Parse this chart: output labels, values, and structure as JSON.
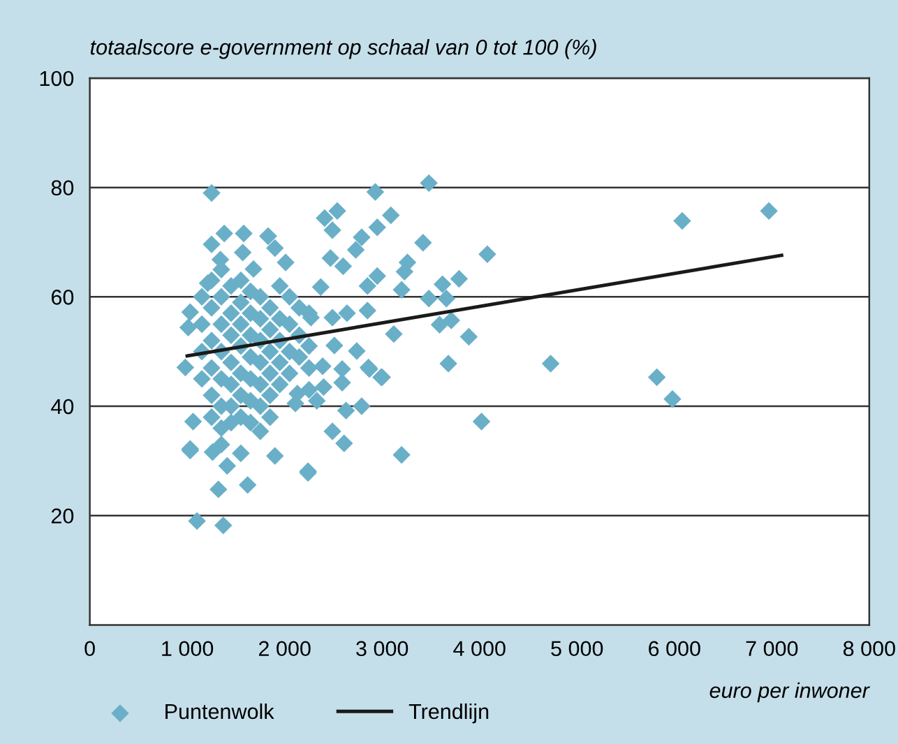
{
  "chart_data": {
    "type": "scatter",
    "ylabel": "totaalscore e-government op schaal van 0 tot 100 (%)",
    "xlabel": "euro per inwoner",
    "xlim": [
      0,
      8000
    ],
    "ylim": [
      0,
      100
    ],
    "xticks": [
      {
        "value": 0,
        "label": "0"
      },
      {
        "value": 1000,
        "label": "1 000"
      },
      {
        "value": 2000,
        "label": "2 000"
      },
      {
        "value": 3000,
        "label": "3 000"
      },
      {
        "value": 4000,
        "label": "4 000"
      },
      {
        "value": 5000,
        "label": "5 000"
      },
      {
        "value": 6000,
        "label": "6 000"
      },
      {
        "value": 7000,
        "label": "7 000"
      },
      {
        "value": 8000,
        "label": "8 000"
      }
    ],
    "yticks": [
      20,
      40,
      60,
      80,
      100
    ],
    "grid": "y",
    "legend": "bottom",
    "series": [
      {
        "name": "Puntenwolk",
        "marker": "diamond",
        "color": "#6aafc8",
        "x": [
          1250,
          1100,
          1370,
          1320,
          1620,
          2240,
          3200,
          1030,
          2930,
          3480,
          6080,
          6970,
          4730,
          5820,
          5980,
          4020,
          4080,
          3420,
          3790,
          3620,
          3660,
          3480,
          3710,
          3590,
          3890,
          3680,
          2410,
          2540,
          3090,
          2950,
          2490,
          2790,
          1830,
          2730,
          1900,
          2010,
          2600,
          2470,
          3260,
          3230,
          2950,
          2850,
          2370,
          3200,
          2850,
          2640,
          2270,
          2490,
          3120,
          2510,
          2740,
          2390,
          2590,
          2870,
          3000,
          2400,
          2130,
          2330,
          2630,
          2790,
          2490,
          2610,
          1900,
          2240,
          2110,
          1380,
          1580,
          1830,
          1250,
          1340,
          1570,
          1680,
          1210,
          1030,
          1010,
          980,
          1060,
          1030,
          1260,
          1410,
          1550,
          1750,
          2590,
          2860,
          2990,
          1150,
          1150,
          1150,
          1150,
          1250,
          1250,
          1250,
          1250,
          1250,
          1250,
          1350,
          1350,
          1350,
          1350,
          1350,
          1350,
          1350,
          1350,
          1450,
          1450,
          1450,
          1450,
          1450,
          1450,
          1450,
          1550,
          1550,
          1550,
          1550,
          1550,
          1550,
          1550,
          1650,
          1650,
          1650,
          1650,
          1650,
          1650,
          1650,
          1750,
          1750,
          1750,
          1750,
          1750,
          1750,
          1850,
          1850,
          1850,
          1850,
          1850,
          1850,
          1950,
          1950,
          1950,
          1950,
          1950,
          2050,
          2050,
          2050,
          2050,
          2150,
          2150,
          2150,
          2250,
          2250,
          2250,
          2250
        ],
        "values": [
          79,
          19,
          18.2,
          24.8,
          25.6,
          28.1,
          31.1,
          32.2,
          79.2,
          80.8,
          73.9,
          75.7,
          47.8,
          45.3,
          41.3,
          37.2,
          67.8,
          69.9,
          63.3,
          62.3,
          59.7,
          59.7,
          55.7,
          54.9,
          52.7,
          47.8,
          74.4,
          75.7,
          74.9,
          72.7,
          72.2,
          70.9,
          71.1,
          68.6,
          68.9,
          66.3,
          65.6,
          67.1,
          66.3,
          64.6,
          63.8,
          62,
          61.8,
          61.3,
          57.5,
          57,
          56.2,
          56.2,
          53.2,
          51.1,
          50.1,
          47.3,
          46.8,
          46.8,
          45.3,
          43.5,
          42.3,
          41,
          39.2,
          40,
          35.4,
          33.2,
          30.9,
          27.8,
          40.5,
          71.6,
          71.6,
          71.1,
          69.6,
          66.8,
          68.1,
          65.1,
          62.5,
          57.2,
          54.4,
          47.1,
          37.2,
          31.9,
          31.6,
          29.1,
          31.4,
          35.4,
          44.3,
          47.1,
          45.3,
          55,
          50,
          45,
          60,
          63,
          58,
          52,
          47,
          42,
          38,
          65,
          60,
          55,
          50,
          45,
          40,
          36,
          33,
          62,
          57,
          53,
          48,
          44,
          40,
          37,
          63,
          59,
          55,
          51,
          46,
          42,
          38,
          61,
          57,
          53,
          49,
          45,
          41,
          37,
          60,
          56,
          52,
          48,
          44,
          40,
          58,
          54,
          50,
          46,
          42,
          38,
          62,
          56,
          52,
          48,
          44,
          60,
          55,
          50,
          46,
          58,
          53,
          49,
          57,
          51,
          47,
          43
        ]
      },
      {
        "name": "Trendlijn",
        "type": "line",
        "color": "#1a1a1a",
        "line_style": "solid",
        "x": [
          1000,
          7100
        ],
        "values": [
          49.2,
          67.6
        ]
      }
    ]
  }
}
